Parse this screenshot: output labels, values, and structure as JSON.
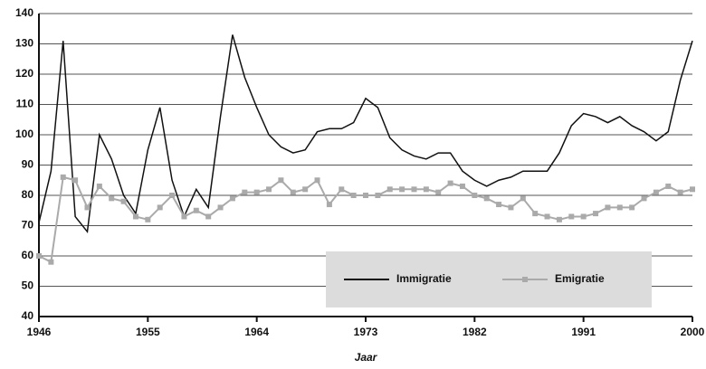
{
  "chart_data": {
    "type": "line",
    "x_label": "Jaar",
    "x": [
      1946,
      1947,
      1948,
      1949,
      1950,
      1951,
      1952,
      1953,
      1954,
      1955,
      1956,
      1957,
      1958,
      1959,
      1960,
      1961,
      1962,
      1963,
      1964,
      1965,
      1966,
      1967,
      1968,
      1969,
      1970,
      1971,
      1972,
      1973,
      1974,
      1975,
      1976,
      1977,
      1978,
      1979,
      1980,
      1981,
      1982,
      1983,
      1984,
      1985,
      1986,
      1987,
      1988,
      1989,
      1990,
      1991,
      1992,
      1993,
      1994,
      1995,
      1996,
      1997,
      1998,
      1999,
      2000
    ],
    "series": [
      {
        "name": "Immigratie",
        "color": "#111111",
        "marker": false,
        "values": [
          71,
          88,
          131,
          73,
          68,
          100,
          92,
          80,
          74,
          95,
          109,
          85,
          73,
          82,
          76,
          106,
          133,
          119,
          109,
          100,
          96,
          94,
          95,
          101,
          102,
          102,
          104,
          112,
          109,
          99,
          95,
          93,
          92,
          94,
          94,
          88,
          85,
          83,
          85,
          86,
          88,
          88,
          88,
          94,
          103,
          107,
          106,
          104,
          106,
          103,
          101,
          98,
          101,
          118,
          131
        ]
      },
      {
        "name": "Emigratie",
        "color": "#aaaaaa",
        "marker": true,
        "values": [
          60,
          58,
          86,
          85,
          76,
          83,
          79,
          78,
          73,
          72,
          76,
          80,
          73,
          75,
          73,
          76,
          79,
          81,
          81,
          82,
          85,
          81,
          82,
          85,
          77,
          82,
          80,
          80,
          80,
          82,
          82,
          82,
          82,
          81,
          84,
          83,
          80,
          79,
          77,
          76,
          79,
          74,
          73,
          72,
          73,
          73,
          74,
          76,
          76,
          76,
          79,
          81,
          83,
          81,
          82
        ]
      }
    ],
    "xlim": [
      1946,
      2000
    ],
    "xticks": [
      1946,
      1955,
      1964,
      1973,
      1982,
      1991,
      2000
    ],
    "ylim": [
      40,
      140
    ],
    "yticks": [
      40,
      50,
      60,
      70,
      80,
      90,
      100,
      110,
      120,
      130,
      140
    ],
    "grid": true,
    "legend": "lower right"
  }
}
